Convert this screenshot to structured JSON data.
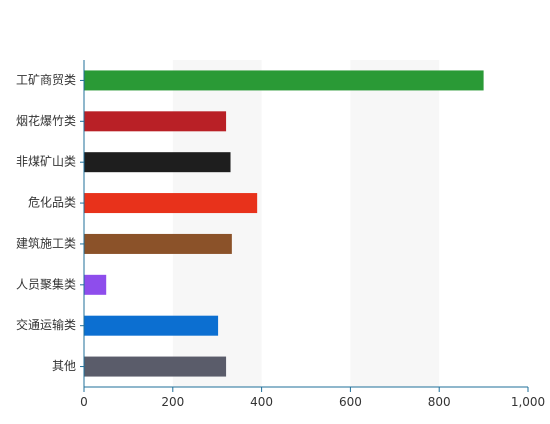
{
  "chart_data": {
    "type": "bar",
    "orientation": "horizontal",
    "categories": [
      "工矿商贸类",
      "烟花爆竹类",
      "非煤矿山类",
      "危化品类",
      "建筑施工类",
      "人员聚集类",
      "交通运输类",
      "其他"
    ],
    "values": [
      900,
      320,
      330,
      390,
      333,
      50,
      302,
      320
    ],
    "bar_colors": [
      "#2a9a36",
      "#b92026",
      "#1e1e1e",
      "#e8321b",
      "#8b5229",
      "#8e4dec",
      "#0c6fd1",
      "#5a5c6a"
    ],
    "xlim": [
      0,
      1000
    ],
    "x_ticks": [
      "0",
      "200",
      "400",
      "600",
      "800",
      "1,000"
    ],
    "grid": "alternating vertical bands",
    "axis_color": "#1f6f9a",
    "band_color": "#f7f7f7",
    "title": "",
    "xlabel": "",
    "ylabel": ""
  }
}
